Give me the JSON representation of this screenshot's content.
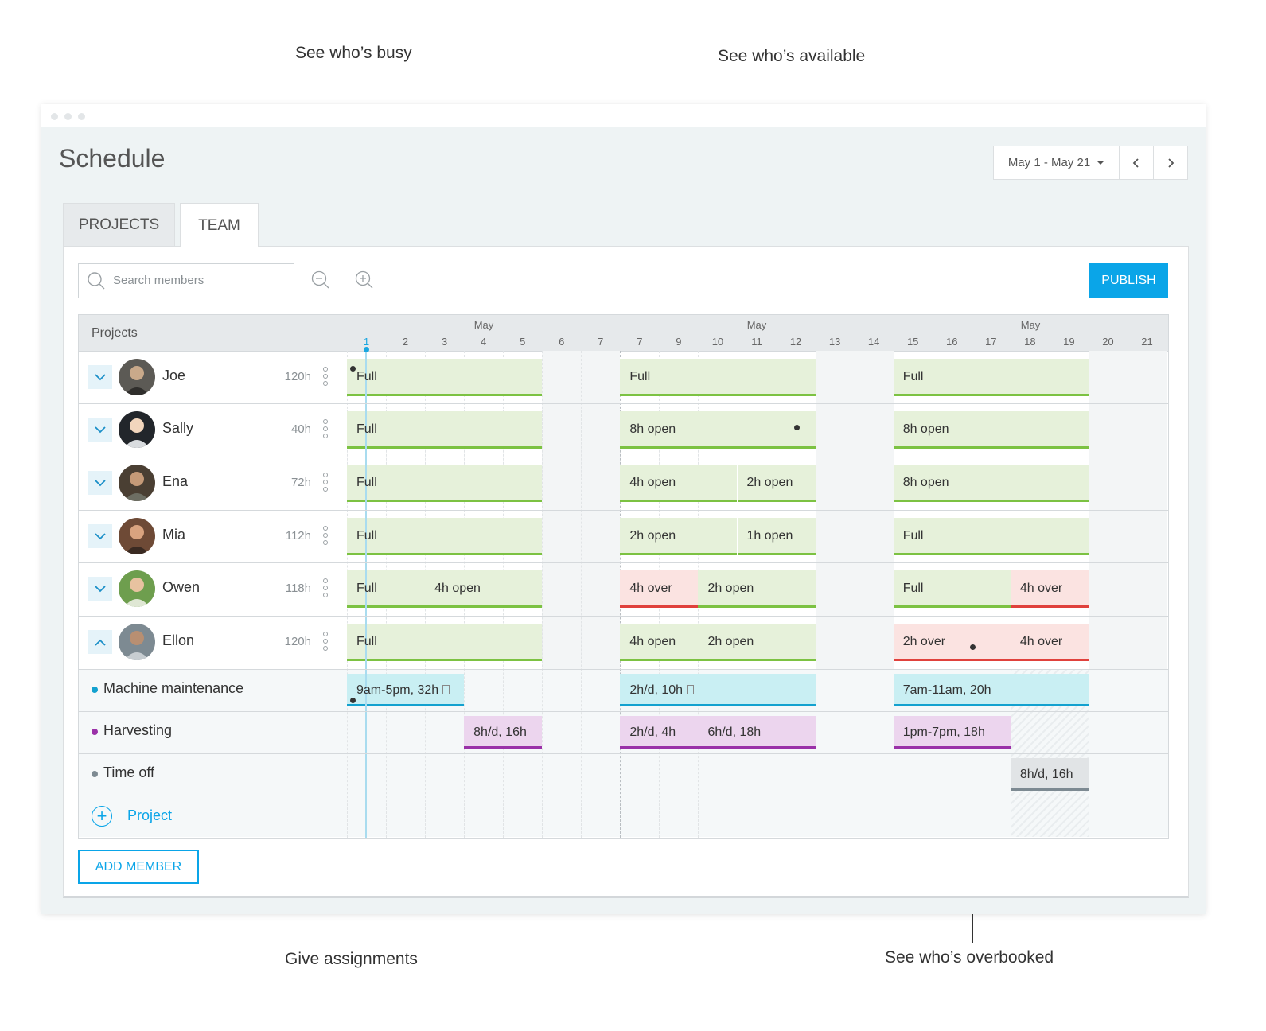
{
  "callouts": {
    "busy": "See who’s busy",
    "available": "See who’s available",
    "assignments": "Give assignments",
    "overbooked": "See who’s overbooked"
  },
  "header": {
    "title": "Schedule",
    "date_range": "May 1 - May 21",
    "prev_icon": "chevron-left-icon",
    "next_icon": "chevron-right-icon"
  },
  "tabs": [
    {
      "label": "PROJECTS",
      "active": false
    },
    {
      "label": "TEAM",
      "active": true
    }
  ],
  "toolbar": {
    "search_placeholder": "Search members",
    "zoom_out_icon": "zoom-out-icon",
    "zoom_in_icon": "zoom-in-icon",
    "publish_label": "PUBLISH"
  },
  "grid": {
    "column_header": "Projects",
    "months": [
      "May",
      "May",
      "May"
    ],
    "days": [
      "1",
      "2",
      "3",
      "4",
      "5",
      "6",
      "7",
      "7",
      "9",
      "10",
      "11",
      "12",
      "13",
      "14",
      "15",
      "16",
      "17",
      "18",
      "19",
      "20",
      "21"
    ],
    "today": "1"
  },
  "members": [
    {
      "name": "Joe",
      "hours": "120h",
      "expanded": false,
      "bars": [
        {
          "label": "Full",
          "status": "available"
        },
        {
          "label": "Full",
          "status": "available"
        },
        {
          "label": "Full",
          "status": "available"
        }
      ]
    },
    {
      "name": "Sally",
      "hours": "40h",
      "expanded": false,
      "bars": [
        {
          "label": "Full",
          "status": "available"
        },
        {
          "label": "8h open",
          "status": "available"
        },
        {
          "label": "8h open",
          "status": "available"
        }
      ]
    },
    {
      "name": "Ena",
      "hours": "72h",
      "expanded": false,
      "bars": [
        {
          "label": "Full",
          "status": "available"
        },
        {
          "label": "4h open",
          "status": "available"
        },
        {
          "label": "2h open",
          "status": "available"
        },
        {
          "label": "8h open",
          "status": "available"
        }
      ]
    },
    {
      "name": "Mia",
      "hours": "112h",
      "expanded": false,
      "bars": [
        {
          "label": "Full",
          "status": "available"
        },
        {
          "label": "2h open",
          "status": "available"
        },
        {
          "label": "1h open",
          "status": "available"
        },
        {
          "label": "Full",
          "status": "available"
        }
      ]
    },
    {
      "name": "Owen",
      "hours": "118h",
      "expanded": false,
      "bars": [
        {
          "label": "Full",
          "status": "available"
        },
        {
          "label": "4h open",
          "status": "available"
        },
        {
          "label": "4h over",
          "status": "over"
        },
        {
          "label": "2h open",
          "status": "available"
        },
        {
          "label": "Full",
          "status": "available"
        },
        {
          "label": "4h over",
          "status": "over"
        }
      ]
    },
    {
      "name": "Ellon",
      "hours": "120h",
      "expanded": true,
      "bars": [
        {
          "label": "Full",
          "status": "available"
        },
        {
          "label": "4h open",
          "status": "available"
        },
        {
          "label": "2h open",
          "status": "available"
        },
        {
          "label": "2h over",
          "status": "over"
        },
        {
          "label": "4h over",
          "status": "over"
        }
      ]
    }
  ],
  "projects": [
    {
      "name": "Machine maintenance",
      "color": "#13a1cf",
      "bars": [
        "9am-5pm, 32h",
        "2h/d, 10h",
        "7am-11am, 20h"
      ]
    },
    {
      "name": "Harvesting",
      "color": "#9a31a8",
      "bars": [
        "8h/d, 16h",
        "2h/d, 4h",
        "6h/d, 18h",
        "1pm-7pm, 18h"
      ]
    },
    {
      "name": "Time off",
      "color": "#7d8a92",
      "bars": [
        "8h/d, 16h"
      ]
    }
  ],
  "add_project_label": "Project",
  "add_member_label": "ADD MEMBER",
  "colors": {
    "accent": "#0aa5e8",
    "available": "#7cc242",
    "over": "#e0413c"
  }
}
